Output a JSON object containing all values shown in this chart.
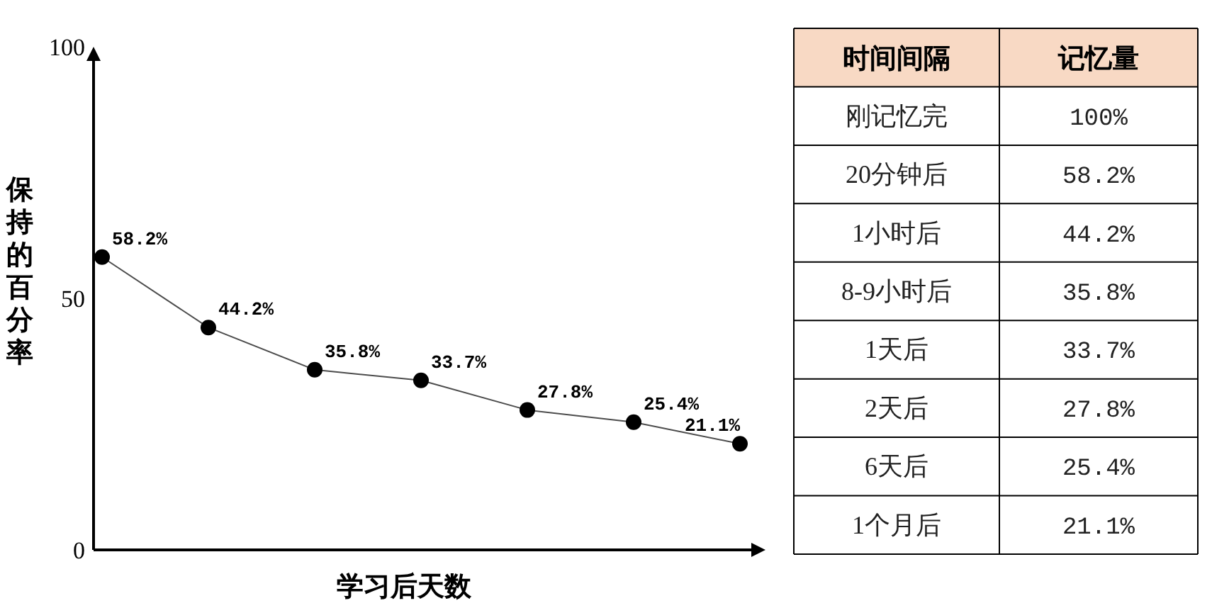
{
  "chart_data": [
    {
      "type": "line",
      "xlabel": "学习后天数",
      "ylabel": "保持的百分率",
      "categories": [
        null,
        null,
        null,
        null,
        null,
        null,
        null
      ],
      "ylim": [
        0,
        100
      ],
      "yticks": [
        0,
        50,
        100
      ],
      "tick_labels": "y",
      "grid": false,
      "marker": "circle",
      "line_style": "solid",
      "series": [
        {
          "color": "#000000",
          "values": [
            58.2,
            44.2,
            35.8,
            33.7,
            27.8,
            25.4,
            21.1
          ],
          "value_labels": [
            "58.2%",
            "44.2%",
            "35.8%",
            "33.7%",
            "27.8%",
            "25.4%",
            "21.1%"
          ]
        }
      ]
    },
    {
      "type": "other",
      "annotations": [
        "时间间隔",
        "记忆量"
      ],
      "categories": [
        "刚记忆完",
        "20分钟后",
        "1小时后",
        "8-9小时后",
        "1天后",
        "2天后",
        "6天后",
        "1个月后"
      ],
      "value_labels": [
        "100%",
        "58.2%",
        "44.2%",
        "35.8%",
        "33.7%",
        "27.8%",
        "25.4%",
        "21.1%"
      ]
    }
  ]
}
